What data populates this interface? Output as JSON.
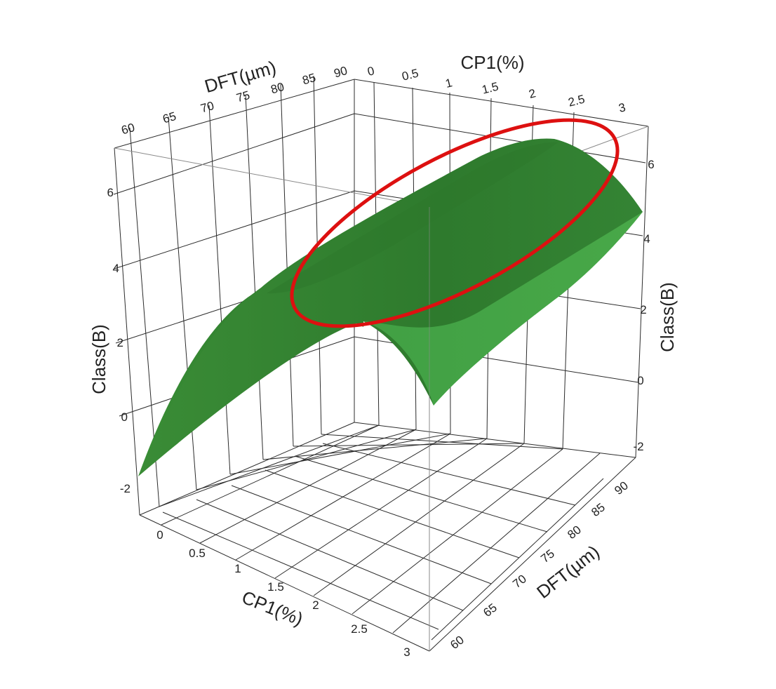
{
  "chart_data": {
    "type": "surface3d",
    "x_axis": {
      "label": "CP1(%)",
      "range": [
        0,
        3
      ],
      "ticks": [
        "0",
        "0.5",
        "1",
        "1.5",
        "2",
        "2.5",
        "3"
      ]
    },
    "y_axis": {
      "label": "DFT(µm)",
      "range": [
        60,
        90
      ],
      "ticks": [
        "60",
        "65",
        "70",
        "75",
        "80",
        "85",
        "90"
      ]
    },
    "z_axis": {
      "label": "Class(B)",
      "range": [
        -2,
        7
      ],
      "ticks_left": [
        "-2",
        "0",
        "2",
        "4",
        "6"
      ],
      "ticks_right": [
        "-2",
        "0",
        "2",
        "4",
        "6"
      ]
    },
    "surface": {
      "color": "#3f9a3f",
      "cp1": [
        0,
        0.5,
        1,
        1.5,
        2,
        2.5,
        3
      ],
      "dft": [
        60,
        65,
        70,
        75,
        80,
        85,
        90
      ],
      "class_b_at_cp1_0": [
        -1.7,
        0.4,
        1.8,
        2.8,
        3.2,
        3.0,
        2.2
      ],
      "class_b_at_cp1_3": [
        1.0,
        4.2,
        6.0,
        6.6,
        6.2,
        5.0,
        3.1
      ]
    },
    "highlight": {
      "shape": "ellipse",
      "color": "#dd1010",
      "region": "ridge of the surface, CP1 1.5–3, DFT 75–80"
    }
  }
}
